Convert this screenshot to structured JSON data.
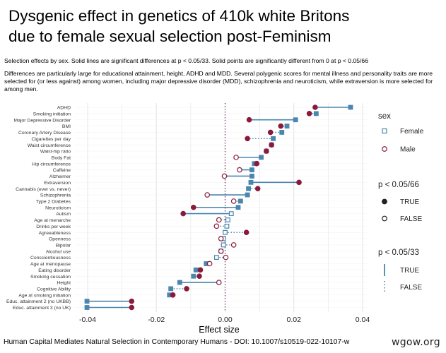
{
  "header": {
    "title": "Dysgenic effect in genetics of 410k white Britons\ndue to female sexual selection post-Feminism",
    "subtitle_line1": "Selection effects by sex. Solid lines are significant differences at p < 0.05/33. Solid points are significantly different from 0 at p < 0.05/66",
    "subtitle_line2": "Differences are particularly large for educational attainment, height, ADHD and MDD. Several polygenic scores for mental illness and personality traits are more selected for (or less against) among women, including major depressive disorder (MDD), schizophrenia and neuroticism, while extraversion is more selected for among men."
  },
  "footer": {
    "citation": "Human Capital Mediates Natural Selection in Contemporary Humans - DOI: 10.1007/s10519-022-10107-w",
    "watermark": "wgow.org"
  },
  "colors": {
    "female": "#4a86ad",
    "male": "#8b1a3a",
    "grid": "#e4e4e4",
    "zero_line": "#6a3d6a"
  },
  "chart_data": {
    "type": "scatter",
    "title": "",
    "xlabel": "Effect size",
    "ylabel": "",
    "xlim": [
      -0.045,
      0.04
    ],
    "x_ticks": [
      -0.04,
      -0.02,
      0.0,
      0.02,
      0.04
    ],
    "x_tick_labels": [
      "-0.04",
      "-0.02",
      "0.00",
      "0.02",
      "0.04"
    ],
    "grid": true,
    "categories": [
      "ADHD",
      "Smoking initiation",
      "Major Depressive Disorder",
      "BMI",
      "Coronary Artery Disease",
      "Cigarettes per day",
      "Waist circumference",
      "Waist-hip ratio",
      "Body Fat",
      "Hip circumference",
      "Caffeine",
      "Alzheimer",
      "Extraversion",
      "Cannabis (ever vs. never)",
      "Schizophrenia",
      "Type 2 Diabetes",
      "Neuroticism",
      "Autism",
      "Age at menarche",
      "Drinks per week",
      "Agreeableness",
      "Openness",
      "Bipolar",
      "Alcohol use",
      "Conscientiousness",
      "Age at menopause",
      "Eating disorder",
      "Smoking cessation",
      "Height",
      "Cognitive Ability",
      "Age at smoking initiation",
      "Educ. attainment 2 (no UKBB)",
      "Educ. attainment 3 (no UK)"
    ],
    "series": [
      {
        "name": "Female",
        "values": [
          0.0365,
          0.0265,
          0.0205,
          0.018,
          0.0165,
          0.014,
          0.0135,
          0.012,
          0.0105,
          0.0085,
          0.0078,
          0.0078,
          0.0075,
          0.0068,
          0.0065,
          0.0045,
          0.0038,
          0.0018,
          0.0008,
          0.0005,
          0.0,
          -0.0005,
          -0.0005,
          -0.0012,
          -0.0025,
          -0.0055,
          -0.0085,
          -0.0092,
          -0.0132,
          -0.0158,
          -0.0162,
          -0.0402,
          -0.0402
        ],
        "significant": [
          true,
          true,
          true,
          true,
          true,
          true,
          true,
          true,
          true,
          true,
          true,
          true,
          true,
          true,
          true,
          true,
          true,
          false,
          false,
          false,
          false,
          false,
          false,
          false,
          false,
          true,
          true,
          true,
          true,
          true,
          true,
          true,
          true
        ]
      },
      {
        "name": "Male",
        "values": [
          0.0262,
          0.0245,
          0.007,
          0.0162,
          0.0132,
          0.0065,
          0.0135,
          0.012,
          0.0032,
          0.0092,
          0.0042,
          -0.0002,
          0.0215,
          0.0095,
          -0.0052,
          0.0025,
          -0.0092,
          -0.0122,
          -0.0018,
          -0.0025,
          0.0062,
          -0.0012,
          0.0025,
          -0.0012,
          0.0002,
          -0.0045,
          -0.0072,
          -0.0075,
          -0.0018,
          -0.0112,
          -0.0152,
          -0.0272,
          -0.0272
        ],
        "significant": [
          true,
          true,
          true,
          true,
          true,
          true,
          true,
          true,
          false,
          true,
          false,
          false,
          true,
          true,
          false,
          false,
          true,
          true,
          false,
          false,
          true,
          false,
          false,
          false,
          false,
          false,
          true,
          true,
          false,
          true,
          true,
          true,
          true
        ]
      }
    ],
    "difference_significant": [
      true,
      false,
      true,
      false,
      false,
      false,
      false,
      false,
      true,
      false,
      true,
      true,
      true,
      false,
      true,
      false,
      true,
      true,
      false,
      false,
      false,
      false,
      false,
      false,
      false,
      false,
      false,
      false,
      true,
      false,
      false,
      true,
      true
    ],
    "legend": {
      "placement": "right",
      "sex": {
        "title": "sex",
        "items": [
          "Female",
          "Male"
        ]
      },
      "point": {
        "title": "p < 0.05/66",
        "items": [
          "TRUE",
          "FALSE"
        ]
      },
      "line": {
        "title": "p < 0.05/33",
        "items": [
          "TRUE",
          "FALSE"
        ]
      }
    }
  }
}
